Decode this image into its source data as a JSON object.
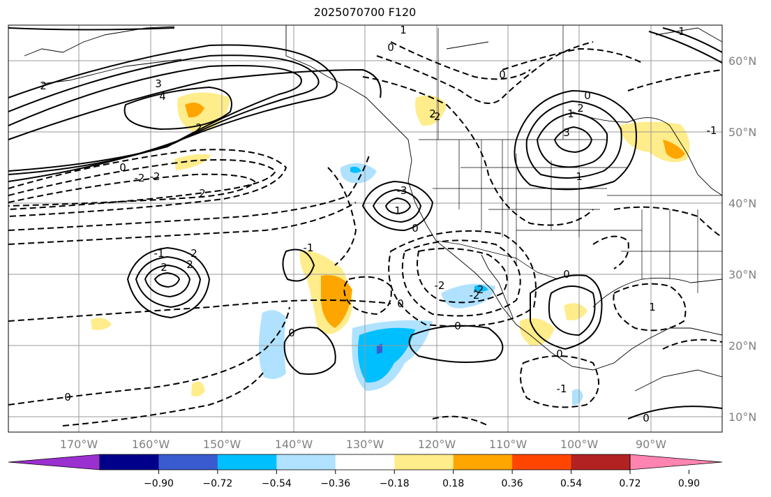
{
  "title": "2025070700 F120",
  "lat_labels": [
    "60°N",
    "50°N",
    "40°N",
    "30°N",
    "20°N",
    "10°N"
  ],
  "lon_labels": [
    "170°W",
    "160°W",
    "150°W",
    "140°W",
    "130°W",
    "120°W",
    "110°W",
    "100°W",
    "90°W"
  ],
  "colorbar": {
    "colors": [
      "#9b30d0",
      "#00008b",
      "#3a5bd0",
      "#00bfff",
      "#b0e2ff",
      "#ffffff",
      "#ffec8b",
      "#ffa500",
      "#ff4500",
      "#b22222",
      "#ff85b0"
    ],
    "ticks": [
      "−0.90",
      "−0.72",
      "−0.54",
      "−0.36",
      "−0.18",
      "0.18",
      "0.36",
      "0.54",
      "0.72",
      "0.90"
    ]
  },
  "contour_labels": [
    "1",
    "0",
    "2",
    "4",
    "3",
    "2",
    "0",
    "-2",
    "3",
    "1",
    "1",
    "2",
    "0",
    "0",
    "-2",
    "-2",
    "2",
    "-3",
    "1",
    "2",
    "2",
    "-1",
    "0",
    "0",
    "0",
    "0",
    "0",
    "2",
    "-2",
    "-2",
    "0",
    "0",
    "1",
    "-1",
    "-1",
    "1",
    "-1",
    "2",
    "-2",
    "0"
  ]
}
